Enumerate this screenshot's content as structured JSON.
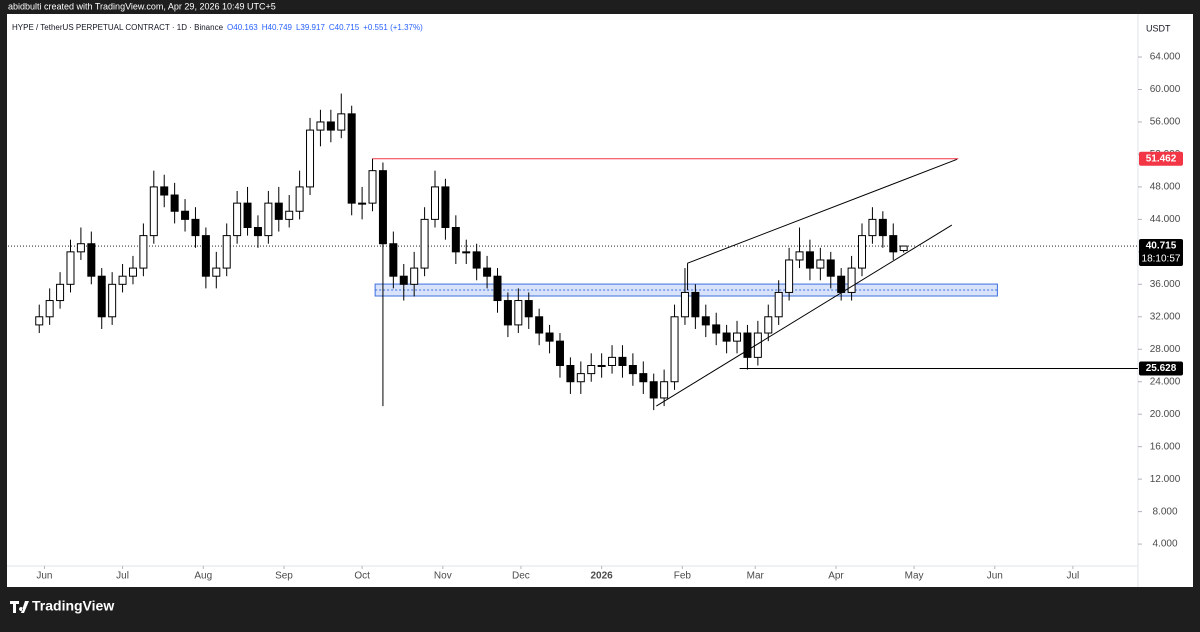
{
  "header": {
    "credit": "abidbulti created with TradingView.com, Apr 29, 2026 10:49 UTC+5",
    "brand": "TradingView"
  },
  "chart_data": {
    "type": "candlestick",
    "symbol": "HYPE / TetherUS PERPETUAL CONTRACT · 1D · Binance",
    "ohlc_labels": [
      "O40.163",
      "H40.749",
      "L39.917",
      "C40.715"
    ],
    "change_label": "+0.551 (+1.37%)",
    "currency": "USDT",
    "up_color": "#ffffff",
    "down_color": "#000000",
    "x": [
      -2,
      2,
      6,
      10,
      14,
      18,
      22,
      26,
      30,
      34,
      38,
      42,
      46,
      50,
      54,
      58,
      62,
      66,
      70,
      74,
      78,
      82,
      86,
      90,
      94,
      98,
      102,
      106,
      110,
      114,
      118,
      122,
      126,
      130,
      134,
      138,
      142,
      146,
      150,
      154,
      158,
      162,
      166,
      170,
      174,
      178,
      182,
      186,
      190,
      194,
      198,
      202,
      206,
      210,
      214,
      218,
      222,
      226,
      230,
      234,
      238,
      242,
      246,
      250,
      254,
      258,
      262,
      266,
      270,
      274,
      278,
      282,
      286,
      290,
      294,
      298,
      302,
      306,
      310,
      314,
      318,
      322,
      326,
      330
    ],
    "open": [
      31,
      32,
      34,
      36,
      40,
      41,
      37,
      32,
      36,
      37,
      38,
      42,
      48,
      47,
      45,
      44,
      42,
      37,
      38,
      42,
      46,
      43,
      42,
      46,
      44,
      45,
      48,
      55,
      56,
      55,
      57,
      46,
      46,
      50,
      41,
      37,
      36,
      38,
      44,
      48,
      43,
      40,
      40,
      38,
      37,
      34,
      31,
      34,
      32,
      30,
      29,
      26,
      24,
      25,
      26,
      26,
      27,
      26,
      25,
      24,
      22,
      24,
      32,
      35,
      32,
      31,
      30,
      29,
      30,
      27,
      30,
      32,
      35,
      39,
      40,
      38,
      39,
      37,
      35,
      38,
      42,
      44,
      42,
      40.163
    ],
    "high": [
      33.5,
      35.5,
      37.5,
      41.5,
      43,
      42.5,
      38,
      37.5,
      38.5,
      39.5,
      43.5,
      50,
      49.5,
      48.5,
      46.5,
      45.5,
      43,
      40,
      43.5,
      47.5,
      48,
      44.5,
      47.5,
      48,
      47,
      50,
      56.5,
      57.5,
      57.5,
      59.5,
      58,
      48,
      51.5,
      51,
      42.5,
      38.5,
      40,
      45.5,
      50,
      49,
      44.5,
      41.5,
      41,
      39.5,
      38,
      35,
      35.5,
      35,
      33,
      31,
      30,
      27,
      26.5,
      27.5,
      27.5,
      28.5,
      28.5,
      27.5,
      26.5,
      25,
      25.5,
      33.5,
      38,
      36,
      33.5,
      32.5,
      31,
      31.5,
      31,
      31.5,
      33.5,
      36.5,
      40.5,
      43,
      41.5,
      40.5,
      40,
      38,
      39.5,
      43.5,
      45.5,
      45,
      43.5,
      40.749
    ],
    "low": [
      30,
      31,
      33,
      35,
      39,
      36,
      30.5,
      31,
      35,
      36,
      37,
      41,
      45.5,
      43.5,
      42.5,
      40.5,
      35.5,
      35.5,
      37,
      41,
      42,
      40.5,
      41,
      42.5,
      43,
      44,
      47,
      53,
      53.5,
      54,
      44.5,
      44,
      45,
      21,
      35.5,
      34,
      34.5,
      37,
      43,
      41.5,
      38.5,
      38.5,
      36.5,
      35.5,
      32.5,
      29.5,
      30,
      30.5,
      28.5,
      27.5,
      24.5,
      22.5,
      22.5,
      24,
      24.5,
      25,
      24.5,
      23.5,
      22.5,
      20.5,
      21,
      23,
      31,
      30.5,
      29.5,
      28.5,
      27.5,
      27.5,
      25.5,
      26,
      29,
      31,
      34,
      38,
      36.5,
      36.5,
      35.5,
      34,
      34,
      37,
      41,
      40.5,
      39,
      39.917
    ],
    "close": [
      32,
      34,
      36,
      40,
      41,
      37,
      32,
      36,
      37,
      38,
      42,
      48,
      47,
      45,
      44,
      42,
      37,
      38,
      42,
      46,
      43,
      42,
      46,
      44,
      45,
      48,
      55,
      56,
      55,
      57,
      46,
      46,
      50,
      41,
      37,
      36,
      38,
      44,
      48,
      43,
      40,
      40,
      38,
      37,
      34,
      31,
      34,
      32,
      30,
      29,
      26,
      24,
      25,
      26,
      26,
      27,
      26,
      25,
      24,
      22,
      24,
      32,
      35,
      32,
      31,
      30,
      29,
      30,
      27,
      30,
      32,
      35,
      39,
      40,
      38,
      39,
      37,
      35,
      38,
      42,
      44,
      42,
      40,
      40.715
    ],
    "xlim": [
      -14,
      420
    ],
    "ylim": [
      1.3,
      69.3
    ],
    "xticks": [
      {
        "value": 0,
        "label": "Jun"
      },
      {
        "value": 30,
        "label": "Jul"
      },
      {
        "value": 61,
        "label": "Aug"
      },
      {
        "value": 92,
        "label": "Sep"
      },
      {
        "value": 122,
        "label": "Oct"
      },
      {
        "value": 153,
        "label": "Nov"
      },
      {
        "value": 183,
        "label": "Dec"
      },
      {
        "value": 214,
        "label": "2026"
      },
      {
        "value": 245,
        "label": "Feb"
      },
      {
        "value": 273,
        "label": "Mar"
      },
      {
        "value": 304,
        "label": "Apr"
      },
      {
        "value": 334,
        "label": "May"
      },
      {
        "value": 365,
        "label": "Jun"
      },
      {
        "value": 395,
        "label": "Jul"
      }
    ],
    "yticks": [
      {
        "value": 4,
        "label": "4.000"
      },
      {
        "value": 8,
        "label": "8.000"
      },
      {
        "value": 12,
        "label": "12.000"
      },
      {
        "value": 16,
        "label": "16.000"
      },
      {
        "value": 20,
        "label": "20.000"
      },
      {
        "value": 24,
        "label": "24.000"
      },
      {
        "value": 28,
        "label": "28.000"
      },
      {
        "value": 32,
        "label": "32.000"
      },
      {
        "value": 36,
        "label": "36.000"
      },
      {
        "value": 40,
        "label": "40.000"
      },
      {
        "value": 44,
        "label": "44.000"
      },
      {
        "value": 48,
        "label": "48.000"
      },
      {
        "value": 52,
        "label": "52.000"
      },
      {
        "value": 56,
        "label": "56.000"
      },
      {
        "value": 60,
        "label": "60.000"
      },
      {
        "value": 64,
        "label": "64.000"
      }
    ],
    "price_lines": [
      {
        "value": 51.462,
        "from": 126,
        "to": 351,
        "color": "#f23645"
      },
      {
        "value": 25.628,
        "from": 267,
        "to": 420,
        "color": "#000000"
      }
    ],
    "last_price": {
      "value": 40.715,
      "countdown": "18:10:57"
    },
    "zone": {
      "top": 36.03,
      "bottom": 34.56,
      "from": 127,
      "to": 366,
      "color": "#3d6fe0"
    },
    "trendlines": [
      {
        "x": [
          235,
          348.5
        ],
        "y": [
          21.0,
          43.3
        ]
      },
      {
        "x": [
          247,
          350.5
        ],
        "y": [
          38.6,
          51.4
        ]
      },
      {
        "x": [
          247,
          247
        ],
        "y": [
          35.3,
          38.6
        ]
      }
    ]
  }
}
